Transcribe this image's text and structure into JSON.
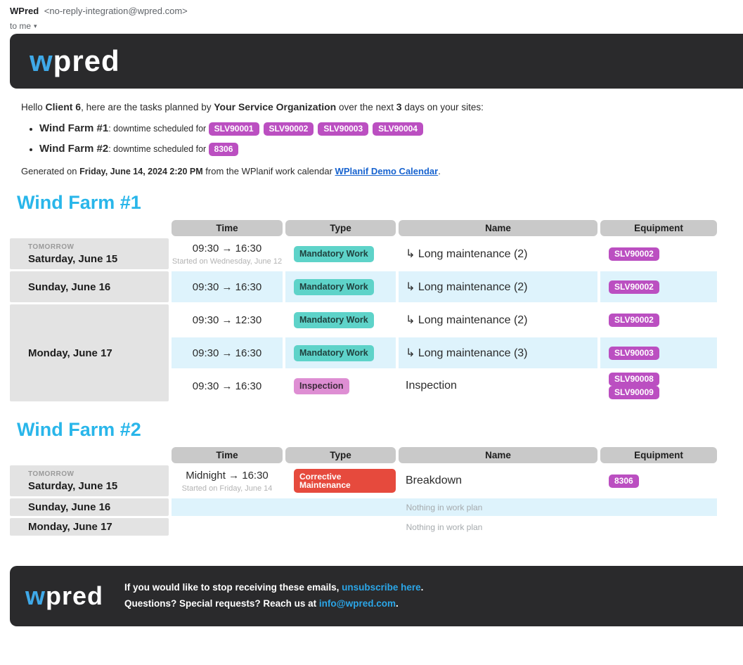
{
  "colors": {
    "banner-bg": "#2a2a2c",
    "accent": "#29b6ea",
    "equipment-badge": "#bb4fc1",
    "mandatory-badge": "#5ed3c9",
    "inspection-badge": "#de8ed3",
    "corrective-badge": "#e64a3d",
    "row-highlight": "#def3fc",
    "date-cell": "#e3e3e3",
    "header-cell": "#c9c9c9",
    "link": "#1763cf",
    "footer-link": "#2ba6e8"
  },
  "mail_header": {
    "sender_name": "WPred",
    "sender_address": "<no-reply-integration@wpred.com>",
    "to_label": "to me",
    "caret": "▾"
  },
  "brand": {
    "logo_first": "w",
    "logo_rest": "pred"
  },
  "intro": {
    "greet_1": "Hello ",
    "client": "Client 6",
    "greet_2": ", here are the tasks planned by ",
    "org": "Your Service Organization",
    "greet_3": " over the next ",
    "days": "3",
    "greet_4": " days on your sites:",
    "bullets": [
      {
        "site": "Wind Farm #1",
        "label": ": downtime scheduled for",
        "equipment": [
          "SLV90001",
          "SLV90002",
          "SLV90003",
          "SLV90004"
        ]
      },
      {
        "site": "Wind Farm #2",
        "label": ": downtime scheduled for",
        "equipment": [
          "8306"
        ]
      }
    ],
    "generated_1": "Generated on ",
    "generated_date": "Friday, June 14, 2024 2:20 PM",
    "generated_2": " from the WPlanif work calendar ",
    "calendar_link": "WPlanif Demo Calendar",
    "generated_3": "."
  },
  "tables": [
    {
      "title": "Wind Farm #1",
      "columns": [
        "Time",
        "Type",
        "Name",
        "Equipment"
      ],
      "rows": [
        {
          "day_label": "TOMORROW",
          "date": "Saturday, June 15",
          "entries": [
            {
              "time": "09:30 → 16:30",
              "time_note": "Started on Wednesday, June 12",
              "type": "Mandatory Work",
              "type_class": "teal",
              "name": "↳ Long maintenance (2)",
              "equipment": [
                "SLV90002"
              ],
              "highlight": false
            }
          ]
        },
        {
          "day_label": "",
          "date": "Sunday, June 16",
          "entries": [
            {
              "time": "09:30 → 16:30",
              "time_note": "",
              "type": "Mandatory Work",
              "type_class": "teal",
              "name": "↳ Long maintenance (2)",
              "equipment": [
                "SLV90002"
              ],
              "highlight": true
            }
          ]
        },
        {
          "day_label": "",
          "date": "Monday, June 17",
          "entries": [
            {
              "time": "09:30 → 12:30",
              "time_note": "",
              "type": "Mandatory Work",
              "type_class": "teal",
              "name": "↳ Long maintenance (2)",
              "equipment": [
                "SLV90002"
              ],
              "highlight": false
            },
            {
              "time": "09:30 → 16:30",
              "time_note": "",
              "type": "Mandatory Work",
              "type_class": "teal",
              "name": "↳ Long maintenance (3)",
              "equipment": [
                "SLV90003"
              ],
              "highlight": true
            },
            {
              "time": "09:30 → 16:30",
              "time_note": "",
              "type": "Inspection",
              "type_class": "pink",
              "name": "Inspection",
              "equipment": [
                "SLV90008",
                "SLV90009"
              ],
              "highlight": false
            }
          ]
        }
      ]
    },
    {
      "title": "Wind Farm #2",
      "columns": [
        "Time",
        "Type",
        "Name",
        "Equipment"
      ],
      "rows": [
        {
          "day_label": "TOMORROW",
          "date": "Saturday, June 15",
          "entries": [
            {
              "time": "Midnight → 16:30",
              "time_note": "Started on Friday, June 14",
              "type": "Corrective Maintenance",
              "type_class": "red",
              "name": "Breakdown",
              "equipment": [
                "8306"
              ],
              "highlight": false
            }
          ]
        },
        {
          "day_label": "",
          "date": "Sunday, June 16",
          "entries": [
            {
              "empty": true,
              "empty_text": "Nothing in work plan",
              "highlight": true
            }
          ]
        },
        {
          "day_label": "",
          "date": "Monday, June 17",
          "entries": [
            {
              "empty": true,
              "empty_text": "Nothing in work plan",
              "highlight": false
            }
          ]
        }
      ]
    }
  ],
  "footer": {
    "line1_1": "If you would like to stop receiving these emails, ",
    "line1_link": "unsubscribe here",
    "line1_2": ".",
    "line2_1": "Questions? Special requests? Reach us at ",
    "line2_link": "info@wpred.com",
    "line2_2": "."
  }
}
